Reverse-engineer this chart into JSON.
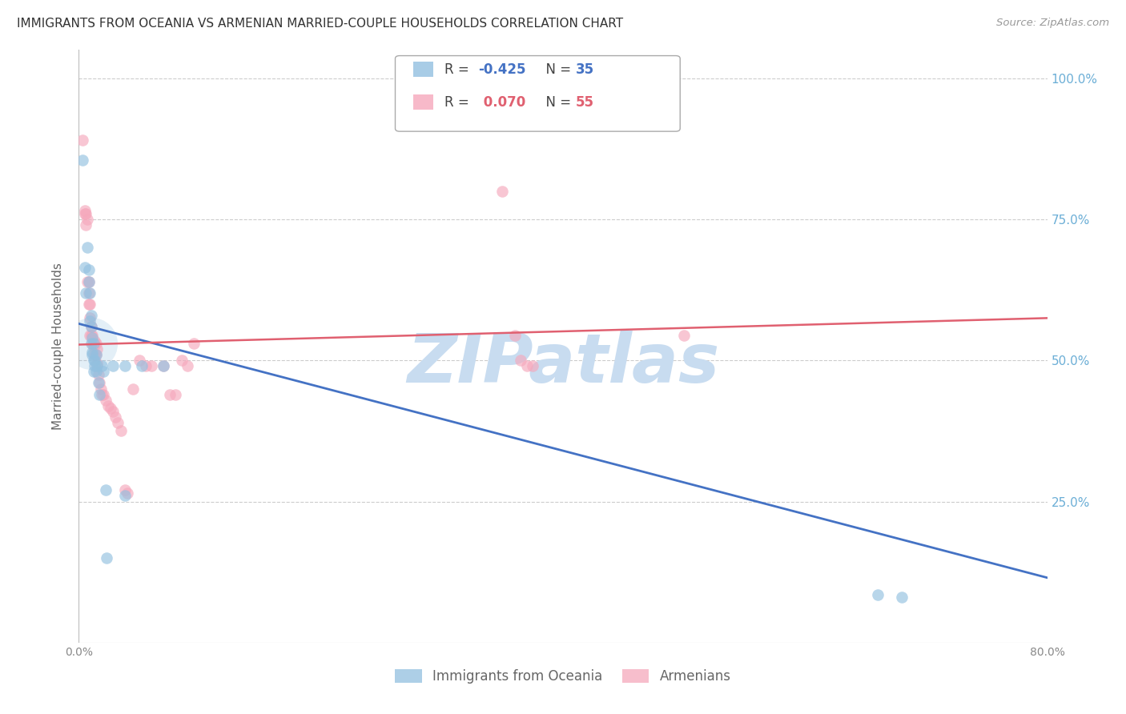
{
  "title": "IMMIGRANTS FROM OCEANIA VS ARMENIAN MARRIED-COUPLE HOUSEHOLDS CORRELATION CHART",
  "source": "Source: ZipAtlas.com",
  "ylabel": "Married-couple Households",
  "xmin": 0.0,
  "xmax": 0.8,
  "ymin": 0.0,
  "ymax": 1.05,
  "yticks": [
    0.0,
    0.25,
    0.5,
    0.75,
    1.0
  ],
  "ytick_labels": [
    "",
    "25.0%",
    "50.0%",
    "75.0%",
    "100.0%"
  ],
  "xticks": [
    0.0,
    0.1,
    0.2,
    0.3,
    0.4,
    0.5,
    0.6,
    0.7,
    0.8
  ],
  "xtick_labels": [
    "0.0%",
    "",
    "",
    "",
    "",
    "",
    "",
    "",
    "80.0%"
  ],
  "blue_label": "Immigrants from Oceania",
  "pink_label": "Armenians",
  "blue_R": -0.425,
  "blue_N": 35,
  "pink_R": 0.07,
  "pink_N": 55,
  "blue_color": "#92C0E0",
  "pink_color": "#F5A8BC",
  "blue_line_color": "#4472C4",
  "pink_line_color": "#E06070",
  "blue_line_start_y": 0.565,
  "blue_line_end_y": 0.115,
  "pink_line_start_y": 0.528,
  "pink_line_end_y": 0.575,
  "blue_scatter": [
    [
      0.003,
      0.855
    ],
    [
      0.005,
      0.665
    ],
    [
      0.006,
      0.62
    ],
    [
      0.007,
      0.7
    ],
    [
      0.008,
      0.64
    ],
    [
      0.008,
      0.66
    ],
    [
      0.009,
      0.62
    ],
    [
      0.009,
      0.57
    ],
    [
      0.01,
      0.58
    ],
    [
      0.01,
      0.56
    ],
    [
      0.01,
      0.53
    ],
    [
      0.011,
      0.54
    ],
    [
      0.011,
      0.515
    ],
    [
      0.011,
      0.51
    ],
    [
      0.012,
      0.53
    ],
    [
      0.012,
      0.5
    ],
    [
      0.012,
      0.48
    ],
    [
      0.013,
      0.5
    ],
    [
      0.013,
      0.49
    ],
    [
      0.014,
      0.51
    ],
    [
      0.014,
      0.48
    ],
    [
      0.015,
      0.49
    ],
    [
      0.016,
      0.46
    ],
    [
      0.017,
      0.44
    ],
    [
      0.019,
      0.49
    ],
    [
      0.02,
      0.48
    ],
    [
      0.022,
      0.27
    ],
    [
      0.023,
      0.15
    ],
    [
      0.028,
      0.49
    ],
    [
      0.038,
      0.49
    ],
    [
      0.038,
      0.26
    ],
    [
      0.052,
      0.49
    ],
    [
      0.07,
      0.49
    ],
    [
      0.66,
      0.085
    ],
    [
      0.68,
      0.08
    ]
  ],
  "pink_scatter": [
    [
      0.003,
      0.89
    ],
    [
      0.005,
      0.76
    ],
    [
      0.005,
      0.765
    ],
    [
      0.006,
      0.76
    ],
    [
      0.006,
      0.74
    ],
    [
      0.007,
      0.75
    ],
    [
      0.007,
      0.64
    ],
    [
      0.008,
      0.64
    ],
    [
      0.008,
      0.62
    ],
    [
      0.008,
      0.6
    ],
    [
      0.009,
      0.6
    ],
    [
      0.009,
      0.575
    ],
    [
      0.009,
      0.545
    ],
    [
      0.01,
      0.56
    ],
    [
      0.01,
      0.545
    ],
    [
      0.011,
      0.545
    ],
    [
      0.011,
      0.53
    ],
    [
      0.012,
      0.53
    ],
    [
      0.012,
      0.525
    ],
    [
      0.013,
      0.535
    ],
    [
      0.013,
      0.51
    ],
    [
      0.014,
      0.53
    ],
    [
      0.014,
      0.51
    ],
    [
      0.015,
      0.52
    ],
    [
      0.015,
      0.495
    ],
    [
      0.016,
      0.475
    ],
    [
      0.017,
      0.46
    ],
    [
      0.018,
      0.45
    ],
    [
      0.019,
      0.44
    ],
    [
      0.02,
      0.44
    ],
    [
      0.022,
      0.43
    ],
    [
      0.024,
      0.42
    ],
    [
      0.026,
      0.415
    ],
    [
      0.028,
      0.41
    ],
    [
      0.03,
      0.4
    ],
    [
      0.032,
      0.39
    ],
    [
      0.035,
      0.375
    ],
    [
      0.038,
      0.27
    ],
    [
      0.04,
      0.265
    ],
    [
      0.045,
      0.45
    ],
    [
      0.05,
      0.5
    ],
    [
      0.055,
      0.49
    ],
    [
      0.06,
      0.49
    ],
    [
      0.07,
      0.49
    ],
    [
      0.075,
      0.44
    ],
    [
      0.08,
      0.44
    ],
    [
      0.085,
      0.5
    ],
    [
      0.09,
      0.49
    ],
    [
      0.095,
      0.53
    ],
    [
      0.35,
      0.8
    ],
    [
      0.36,
      0.545
    ],
    [
      0.365,
      0.5
    ],
    [
      0.37,
      0.49
    ],
    [
      0.375,
      0.49
    ],
    [
      0.5,
      0.545
    ]
  ],
  "title_fontsize": 11,
  "source_fontsize": 9.5,
  "axis_label_fontsize": 11,
  "tick_fontsize": 10,
  "legend_fontsize": 12,
  "watermark": "ZIPatlas",
  "watermark_color": "#C8DCF0",
  "background_color": "#FFFFFF",
  "grid_color": "#CCCCCC",
  "right_tick_color": "#6BAED6"
}
